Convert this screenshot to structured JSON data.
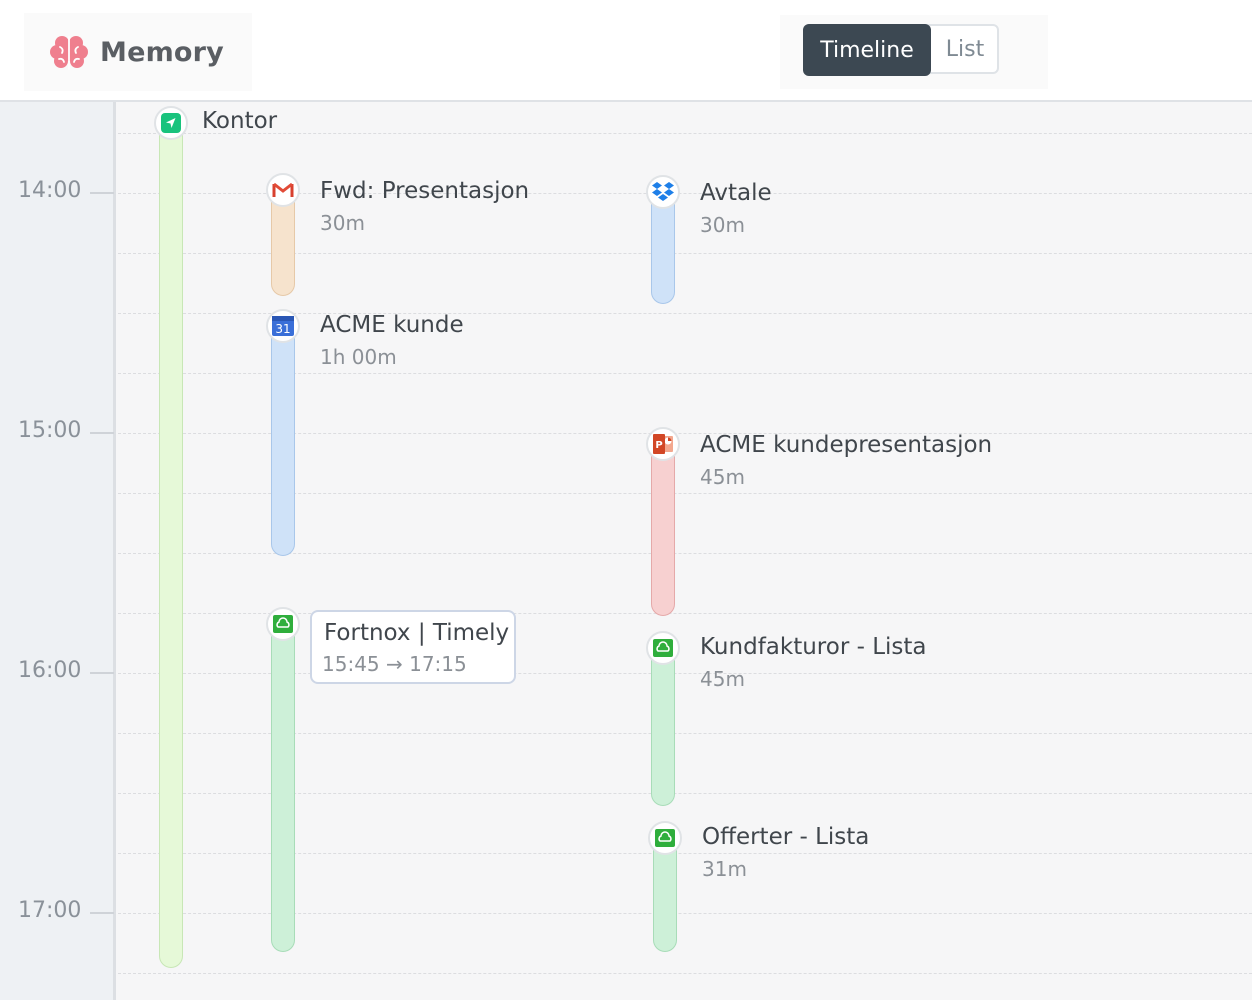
{
  "app": {
    "name": "Memory",
    "logo_icon": "brain-icon"
  },
  "view_toggle": {
    "active": "Timeline",
    "inactive": "List"
  },
  "hours": [
    "14:00",
    "15:00",
    "16:00",
    "17:00"
  ],
  "colors": {
    "location": "#e6f9d8",
    "mail": "#f6e3cd",
    "dropbox": "#cfe2f8",
    "calendar": "#cfe2f8",
    "powerpoint": "#f7d0d0",
    "fortnox": "#cdf0d8",
    "toggle_active": "#3c4852",
    "brand_icon": "#ef7f8e"
  },
  "events": {
    "kontor": {
      "title": "Kontor",
      "icon": "location-arrow-icon"
    },
    "fwd": {
      "title": "Fwd: Presentasjon",
      "duration": "30m",
      "icon": "gmail-icon"
    },
    "acme_kunde": {
      "title": "ACME kunde",
      "duration": "1h 00m",
      "icon": "calendar-icon",
      "icon_text": "31"
    },
    "fortnox_timely": {
      "icon": "fortnox-cloud-icon"
    },
    "avtale": {
      "title": "Avtale",
      "duration": "30m",
      "icon": "dropbox-icon"
    },
    "acme_pres": {
      "title": "ACME kundepresentasjon",
      "duration": "45m",
      "icon": "powerpoint-icon",
      "icon_text": "P"
    },
    "kundfakturor": {
      "title": "Kundfakturor - Lista",
      "duration": "45m",
      "icon": "fortnox-cloud-icon"
    },
    "offerter": {
      "title": "Offerter - Lista",
      "duration": "31m",
      "icon": "fortnox-cloud-icon"
    }
  },
  "tooltip": {
    "title": "Fortnox | Timely",
    "range": "15:45 → 17:15"
  }
}
